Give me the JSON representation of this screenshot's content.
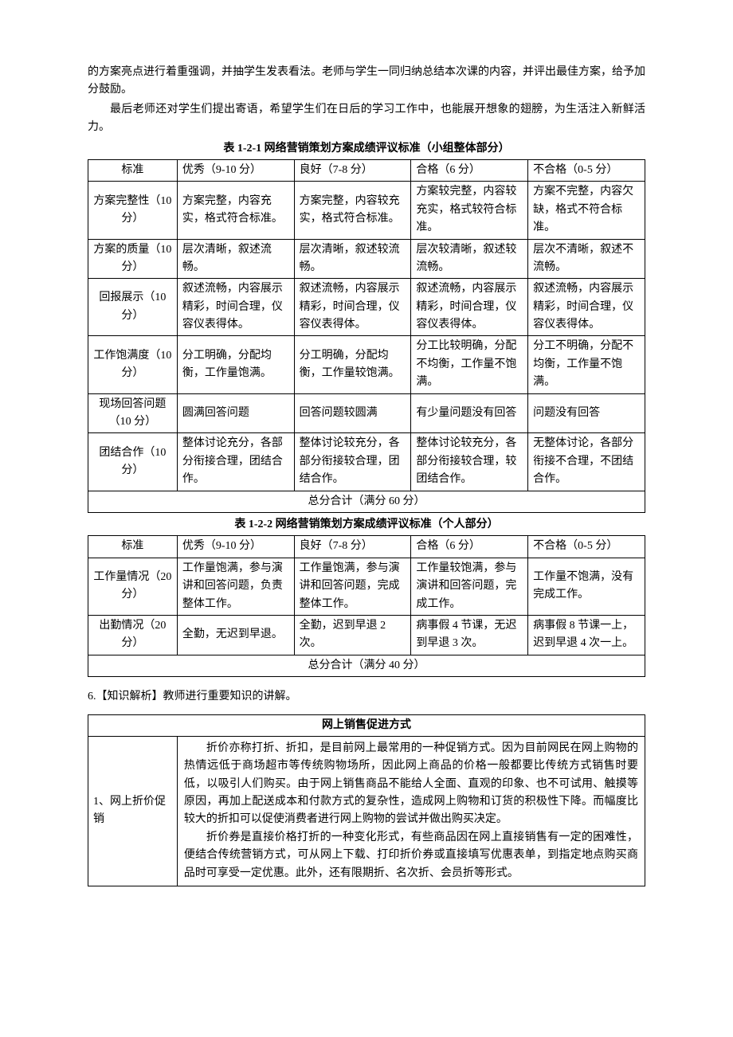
{
  "intro": {
    "p1": "的方案亮点进行着重强调，并抽学生发表看法。老师与学生一同归纳总结本次课的内容，并评出最佳方案，给予加分鼓励。",
    "p2": "最后老师还对学生们提出寄语，希望学生们在日后的学习工作中，也能展开想象的翅膀，为生活注入新鲜活力。"
  },
  "table1": {
    "title": "表 1-2-1  网络营销策划方案成绩评议标准（小组整体部分）",
    "headers": [
      "标准",
      "优秀（9-10 分）",
      "良好（7-8 分）",
      "合格（6 分）",
      "不合格（0-5 分）"
    ],
    "rows": [
      {
        "criteria": "方案完整性（10 分）",
        "excellent": "方案完整，内容充实，格式符合标准。",
        "good": "方案完整，内容较充实，格式符合标准。",
        "pass": "方案较完整，内容较充实，格式较符合标准。",
        "fail": "方案不完整，内容欠缺，格式不符合标准。"
      },
      {
        "criteria": "方案的质量（10 分）",
        "excellent": "层次清晰，叙述流畅。",
        "good": "层次清晰，叙述较流畅。",
        "pass": "层次较清晰，叙述较流畅。",
        "fail": "层次不清晰，叙述不流畅。"
      },
      {
        "criteria": "回报展示（10 分）",
        "excellent": "叙述流畅，内容展示精彩，时间合理，仪容仪表得体。",
        "good": "叙述流畅，内容展示精彩，时间合理，仪容仪表得体。",
        "pass": "叙述流畅，内容展示精彩，时间合理，仪容仪表得体。",
        "fail": "叙述流畅，内容展示精彩，时间合理，仪容仪表得体。"
      },
      {
        "criteria": "工作饱满度（10 分）",
        "excellent": "分工明确，分配均衡，工作量饱满。",
        "good": "分工明确，分配均衡，工作量较饱满。",
        "pass": "分工比较明确，分配不均衡，工作量不饱满。",
        "fail": "分工不明确，分配不均衡，工作量不饱满。"
      },
      {
        "criteria": "现场回答问题（10 分）",
        "excellent": "圆满回答问题",
        "good": "回答问题较圆满",
        "pass": "有少量问题没有回答",
        "fail": "问题没有回答"
      },
      {
        "criteria": "团结合作（10 分）",
        "excellent": "整体讨论充分，各部分衔接合理，团结合作。",
        "good": "整体讨论较充分，各部分衔接较合理，团结合作。",
        "pass": "整体讨论较充分，各部分衔接较合理，较团结合作。",
        "fail": "无整体讨论，各部分衔接不合理，不团结合作。"
      }
    ],
    "total": "总分合计（满分 60 分）"
  },
  "table2": {
    "title": "表 1-2-2  网络营销策划方案成绩评议标准（个人部分）",
    "headers": [
      "标准",
      "优秀（9-10 分）",
      "良好（7-8 分）",
      "合格（6 分）",
      "不合格（0-5 分）"
    ],
    "rows": [
      {
        "criteria": "工作量情况（20 分）",
        "excellent": "工作量饱满，参与演讲和回答问题，负责整体工作。",
        "good": "工作量饱满，参与演讲和回答问题，完成整体工作。",
        "pass": "工作量较饱满，参与演讲和回答问题，完成工作。",
        "fail": "工作量不饱满，没有完成工作。"
      },
      {
        "criteria": "出勤情况（20 分）",
        "excellent": "全勤，无迟到早退。",
        "good": "全勤，迟到早退 2 次。",
        "pass": "病事假 4 节课，无迟到早退 3 次。",
        "fail": "病事假 8 节课一上，迟到早退 4 次一上。"
      }
    ],
    "total": "总分合计（满分 40 分）"
  },
  "knowledge": {
    "heading": "6.【知识解析】教师进行重要知识的讲解。",
    "table_title": "网上销售促进方式",
    "row_label": "1、网上折价促销",
    "para1": "折价亦称打折、折扣，是目前网上最常用的一种促销方式。因为目前网民在网上购物的热情远低于商场超市等传统购物场所，因此网上商品的价格一般都要比传统方式销售时要低，以吸引人们购买。由于网上销售商品不能给人全面、直观的印象、也不可试用、触摸等原因，再加上配送成本和付款方式的复杂性，造成网上购物和订货的积极性下降。而幅度比较大的折扣可以促使消费者进行网上购物的尝试并做出购买决定。",
    "para2": "折价券是直接价格打折的一种变化形式，有些商品因在网上直接销售有一定的困难性，便结合传统营销方式，可从网上下载、打印折价券或直接填写优惠表单，到指定地点购买商品时可享受一定优惠。此外，还有限期折、名次折、会员折等形式。"
  },
  "style": {
    "background_color": "#ffffff",
    "text_color": "#000000",
    "border_color": "#000000",
    "font_family": "SimSun",
    "base_font_size": 14
  }
}
